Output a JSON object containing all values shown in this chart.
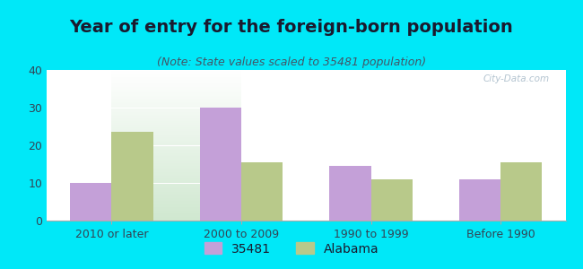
{
  "title": "Year of entry for the foreign-born population",
  "subtitle": "(Note: State values scaled to 35481 population)",
  "categories": [
    "2010 or later",
    "2000 to 2009",
    "1990 to 1999",
    "Before 1990"
  ],
  "values_35481": [
    10,
    30,
    14.5,
    11
  ],
  "values_alabama": [
    23.5,
    15.5,
    11,
    15.5
  ],
  "bar_color_35481": "#c4a0d8",
  "bar_color_alabama": "#b8c98a",
  "background_outer": "#00e8f8",
  "background_inner_top": "#ffffff",
  "background_inner_bottom": "#d0e8d0",
  "ylim": [
    0,
    40
  ],
  "yticks": [
    0,
    10,
    20,
    30,
    40
  ],
  "legend_label_1": "35481",
  "legend_label_2": "Alabama",
  "bar_width": 0.32,
  "title_fontsize": 14,
  "subtitle_fontsize": 9,
  "tick_fontsize": 9,
  "legend_fontsize": 10,
  "title_color": "#1a1a2e",
  "subtitle_color": "#445566",
  "tick_color": "#334455"
}
